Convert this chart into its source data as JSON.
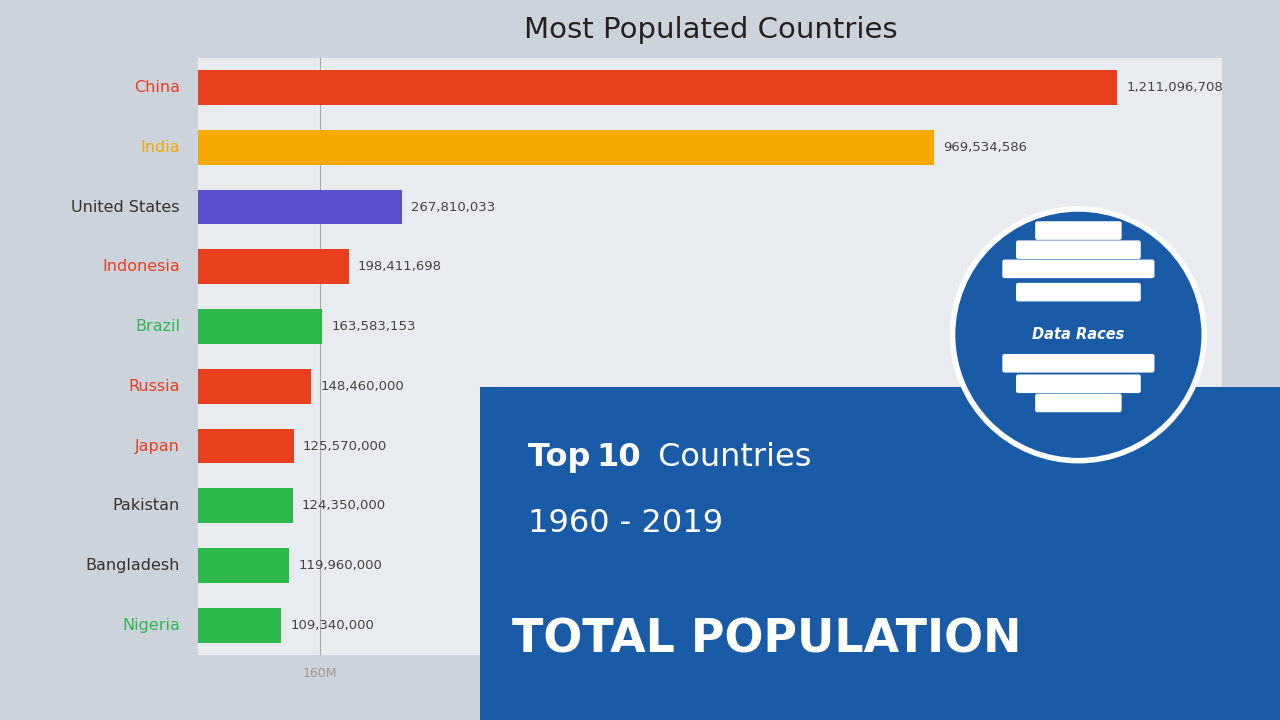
{
  "title": "Most Populated Countries",
  "background_color": "#cdd3dc",
  "chart_bg": "#e8ecf0",
  "countries": [
    "China",
    "India",
    "United States",
    "Indonesia",
    "Brazil",
    "Russia",
    "Japan",
    "Pakistan",
    "Bangladesh",
    "Nigeria"
  ],
  "values": [
    1211096708,
    969534586,
    267810033,
    198411698,
    163583153,
    148460000,
    125570000,
    124350000,
    119960000,
    109340000
  ],
  "full_value_labels": [
    "1,211,096,708",
    "969,534,586",
    "267,810,033",
    "198,411,698",
    "163,583,153",
    "148,460,000",
    "125,570,000",
    "124,350,000",
    "119,960,000",
    "109,340,000"
  ],
  "bar_colors": [
    "#e8401c",
    "#f5a800",
    "#5a4fcf",
    "#e8401c",
    "#2db84b",
    "#e8401c",
    "#e8401c",
    "#2db84b",
    "#2db84b",
    "#2db84b"
  ],
  "label_colors": [
    "#e8401c",
    "#f5a800",
    "#333333",
    "#e8401c",
    "#2db84b",
    "#e8401c",
    "#e8401c",
    "#333333",
    "#333333",
    "#2db84b"
  ],
  "overlay_color": "#1a5ba8",
  "xlim": 1350000000,
  "logo_color": "#1a5ba8"
}
